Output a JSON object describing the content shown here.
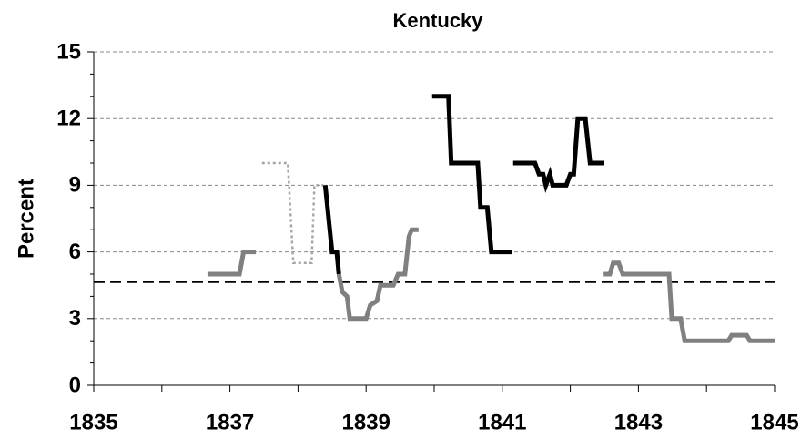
{
  "chart_data": {
    "type": "line",
    "title": "Kentucky",
    "ylabel": "Percent",
    "xlim": [
      1835,
      1845
    ],
    "xticks": [
      1835,
      1837,
      1839,
      1841,
      1843,
      1845
    ],
    "xminor": [
      1836,
      1838,
      1840,
      1842,
      1844
    ],
    "ylim": [
      0,
      15
    ],
    "yticks": [
      0,
      3,
      6,
      9,
      12,
      15
    ],
    "yminor": [
      1,
      2,
      4,
      5,
      7,
      8,
      10,
      11,
      13,
      14
    ],
    "grid": true,
    "reference_line": 4.65,
    "series": [
      {
        "color": "#808080",
        "style": "solid",
        "x": [
          1836.67,
          1837.14,
          1837.2,
          1837.38
        ],
        "values": [
          5,
          5,
          6,
          6
        ]
      },
      {
        "color": "#a6a6a6",
        "style": "dotted",
        "x": [
          1837.47,
          1837.85,
          1837.93,
          1838.2,
          1838.24,
          1838.37
        ],
        "values": [
          10,
          10,
          5.5,
          5.5,
          9,
          9
        ]
      },
      {
        "color": "#000000",
        "style": "solid",
        "x": [
          1838.4,
          1838.5,
          1838.57,
          1838.6
        ],
        "values": [
          9,
          6,
          6,
          5
        ]
      },
      {
        "color": "#808080",
        "style": "solid",
        "x": [
          1838.6,
          1838.65,
          1838.72,
          1838.76,
          1839.0,
          1839.06,
          1839.16,
          1839.21,
          1839.4,
          1839.47,
          1839.57,
          1839.63,
          1839.67,
          1839.77
        ],
        "values": [
          5,
          4.2,
          4,
          3,
          3,
          3.6,
          3.8,
          4.5,
          4.5,
          5,
          5,
          6.7,
          7,
          7
        ]
      },
      {
        "color": "#000000",
        "style": "solid",
        "x": [
          1839.97,
          1840.21,
          1840.25,
          1840.64,
          1840.68,
          1840.78,
          1840.84,
          1841.14
        ],
        "values": [
          13,
          13,
          10,
          10,
          8,
          8,
          6,
          6
        ]
      },
      {
        "color": "#000000",
        "style": "solid",
        "x": [
          1841.16,
          1841.48,
          1841.54,
          1841.6,
          1841.64,
          1841.7,
          1841.74,
          1841.94,
          1842.0,
          1842.05,
          1842.11,
          1842.22,
          1842.29,
          1842.5
        ],
        "values": [
          10,
          10,
          9.5,
          9.5,
          9,
          9.5,
          9,
          9,
          9.5,
          9.5,
          12,
          12,
          10,
          10
        ]
      },
      {
        "color": "#808080",
        "style": "solid",
        "x": [
          1842.49,
          1842.58,
          1842.63,
          1842.71,
          1842.77,
          1843.45,
          1843.49,
          1843.62,
          1843.68,
          1844.32,
          1844.37,
          1844.59,
          1844.64,
          1845
        ],
        "values": [
          5,
          5,
          5.5,
          5.5,
          5,
          5,
          3,
          3,
          2,
          2,
          2.25,
          2.25,
          2,
          2
        ]
      }
    ]
  }
}
